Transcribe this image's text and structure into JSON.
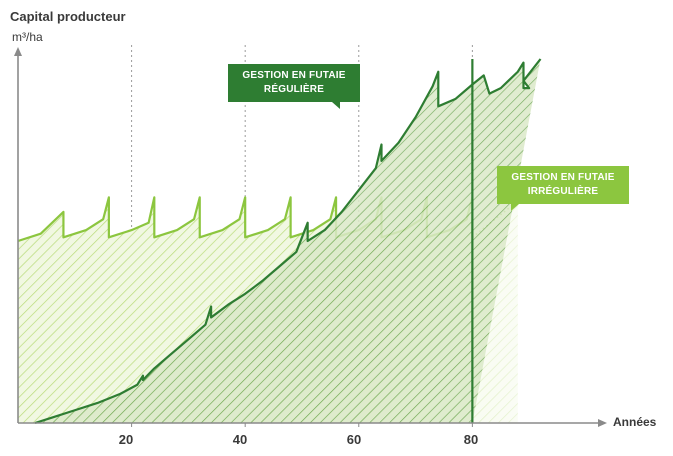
{
  "chart_data": {
    "type": "area",
    "ylabel": "Capital producteur",
    "yunit": "m³/ha",
    "xlabel": "Années",
    "xlim": [
      0,
      103
    ],
    "ylim": [
      0,
      100
    ],
    "xticks": [
      20,
      40,
      60,
      80
    ],
    "grid": "vertical dotted lines at x ticks",
    "series": [
      {
        "name": "GESTION EN FUTAIE RÉGULIÈRE",
        "color": "#2e7d32",
        "points": [
          [
            3,
            0
          ],
          [
            6,
            1.5
          ],
          [
            10,
            3.5
          ],
          [
            14,
            5.5
          ],
          [
            18,
            8
          ],
          [
            21,
            10.5
          ],
          [
            22,
            13
          ],
          [
            22,
            11.8
          ],
          [
            24,
            15
          ],
          [
            27,
            19
          ],
          [
            30,
            23
          ],
          [
            33,
            27
          ],
          [
            34,
            32
          ],
          [
            34,
            29
          ],
          [
            37,
            32.5
          ],
          [
            40,
            35.5
          ],
          [
            43,
            39
          ],
          [
            46,
            43
          ],
          [
            49,
            47
          ],
          [
            51,
            55
          ],
          [
            51,
            50
          ],
          [
            54,
            53
          ],
          [
            57,
            58
          ],
          [
            60,
            64
          ],
          [
            63,
            70
          ],
          [
            64,
            76.5
          ],
          [
            64,
            72
          ],
          [
            67,
            77
          ],
          [
            70,
            84
          ],
          [
            73,
            92.5
          ],
          [
            74,
            96.5
          ],
          [
            74,
            87
          ],
          [
            77,
            89
          ],
          [
            80,
            93
          ],
          [
            82,
            95.5
          ],
          [
            83,
            90.5
          ],
          [
            85,
            92
          ],
          [
            88,
            96.5
          ],
          [
            89,
            99
          ],
          [
            89,
            92
          ],
          [
            90,
            92
          ],
          [
            89,
            94
          ],
          [
            92,
            100
          ]
        ],
        "annotation": [
          "GESTION EN FUTAIE",
          "RÉGULIÈRE"
        ]
      },
      {
        "name": "GESTION EN FUTAIE IRRÉGULIÈRE",
        "color": "#8cc63f",
        "points": [
          [
            0,
            50
          ],
          [
            4,
            52
          ],
          [
            8,
            58
          ],
          [
            8,
            51
          ],
          [
            12,
            53
          ],
          [
            15,
            56
          ],
          [
            16,
            62
          ],
          [
            16,
            51
          ],
          [
            20,
            53
          ],
          [
            23,
            55
          ],
          [
            24,
            62
          ],
          [
            24,
            51
          ],
          [
            28,
            53
          ],
          [
            31,
            56
          ],
          [
            32,
            62
          ],
          [
            32,
            51
          ],
          [
            36,
            53
          ],
          [
            39,
            56
          ],
          [
            40,
            62
          ],
          [
            40,
            51
          ],
          [
            44,
            53
          ],
          [
            47,
            56
          ],
          [
            48,
            62
          ],
          [
            48,
            51
          ],
          [
            52,
            53
          ],
          [
            55,
            56
          ],
          [
            56,
            62
          ],
          [
            56,
            51
          ],
          [
            60,
            53
          ],
          [
            63,
            56
          ],
          [
            64,
            62
          ],
          [
            64,
            51
          ],
          [
            68,
            53
          ],
          [
            71,
            56
          ],
          [
            72,
            62
          ],
          [
            72,
            51
          ],
          [
            76,
            53
          ],
          [
            79,
            56
          ],
          [
            80,
            62
          ],
          [
            80,
            51
          ]
        ],
        "projection_dotted": true,
        "annotation": [
          "GESTION EN FUTAIE",
          "IRRÉGULIÈRE"
        ]
      }
    ]
  },
  "labels": {
    "ytitle": "Capital producteur",
    "yunit": "m³/ha",
    "xtitle": "Années",
    "ticks": [
      "20",
      "40",
      "60",
      "80"
    ],
    "callout_reg": [
      "GESTION EN FUTAIE",
      "RÉGULIÈRE"
    ],
    "callout_irr": [
      "GESTION EN FUTAIE",
      "IRRÉGULIÈRE"
    ]
  },
  "colors": {
    "regular": "#2e7d32",
    "irregular": "#8cc63f",
    "axis": "#8a8a8a",
    "grid": "#9a9a9a"
  }
}
